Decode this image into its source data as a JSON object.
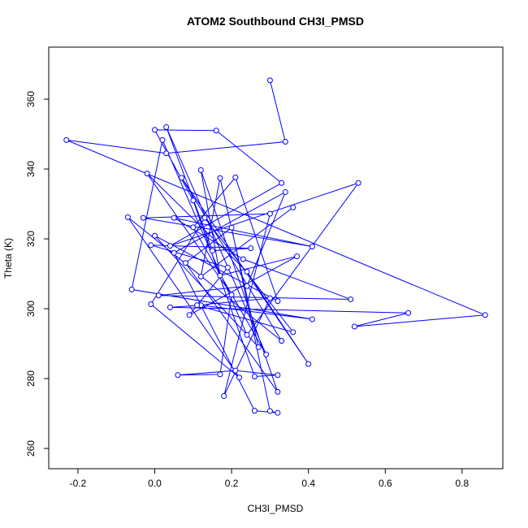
{
  "chart_data": {
    "type": "line",
    "markers": true,
    "title": "ATOM2 Southbound CH3I_PMSD",
    "x_label": "CH3I_PMSD",
    "y_label": "Theta (K)",
    "color": "#0000ff",
    "x": [
      0.3,
      0.34,
      0.03,
      -0.23,
      0.86,
      0.52,
      0.66,
      0.04,
      0.12,
      0.41,
      -0.06,
      0.02,
      0.24,
      0.53,
      0.04,
      0.33,
      0.16,
      0.0,
      0.1,
      0.26,
      0.32,
      0.21,
      0.06,
      0.17,
      0.2,
      -0.02,
      0.24,
      0.4,
      0.07,
      0.33,
      -0.07,
      0.22,
      -0.01,
      0.13,
      0.36,
      0.11,
      0.3,
      0.18,
      0.3,
      -0.03,
      0.41,
      0.05,
      0.23,
      0.51,
      0.01,
      0.24,
      0.34,
      0.05,
      0.26,
      0.32,
      0.3,
      0.2,
      0.08,
      0.32,
      0.12,
      0.17,
      0.37,
      0.09,
      0.19,
      -0.01,
      0.25,
      0.15,
      0.03,
      0.29,
      0.1,
      0.21,
      0.32,
      0.0,
      0.27,
      0.17,
      0.12,
      0.36
    ],
    "values": [
      365.4,
      347.8,
      344.5,
      348.3,
      298.2,
      294.9,
      298.8,
      300.4,
      301.0,
      297.0,
      305.5,
      348.3,
      292.5,
      336.0,
      318.0,
      336.0,
      351.0,
      351.2,
      331.0,
      280.6,
      281.0,
      282.3,
      281.0,
      281.2,
      304.0,
      338.7,
      310.6,
      284.2,
      337.5,
      290.8,
      326.2,
      280.3,
      301.3,
      326.0,
      293.3,
      301.0,
      303.0,
      275.0,
      327.2,
      326.0,
      317.8,
      326.0,
      314.2,
      302.7,
      303.8,
      306.5,
      333.4,
      316.0,
      270.8,
      270.2,
      270.7,
      323.2,
      313.1,
      276.2,
      339.7,
      309.5,
      315.0,
      298.2,
      311.8,
      318.2,
      317.3,
      316.6,
      352.0,
      286.9,
      323.3,
      337.6,
      302.2,
      320.9,
      289.0,
      337.4,
      309.2,
      329.0
    ],
    "xlim": [
      -0.276,
      0.906
    ],
    "ylim": [
      254.2,
      374.9
    ],
    "xticks": [
      -0.2,
      {
        "value": 0,
        "label": "0.0"
      },
      0.2,
      0.4,
      0.6,
      0.8
    ],
    "yticks": [
      260,
      280,
      300,
      320,
      340,
      360
    ]
  }
}
